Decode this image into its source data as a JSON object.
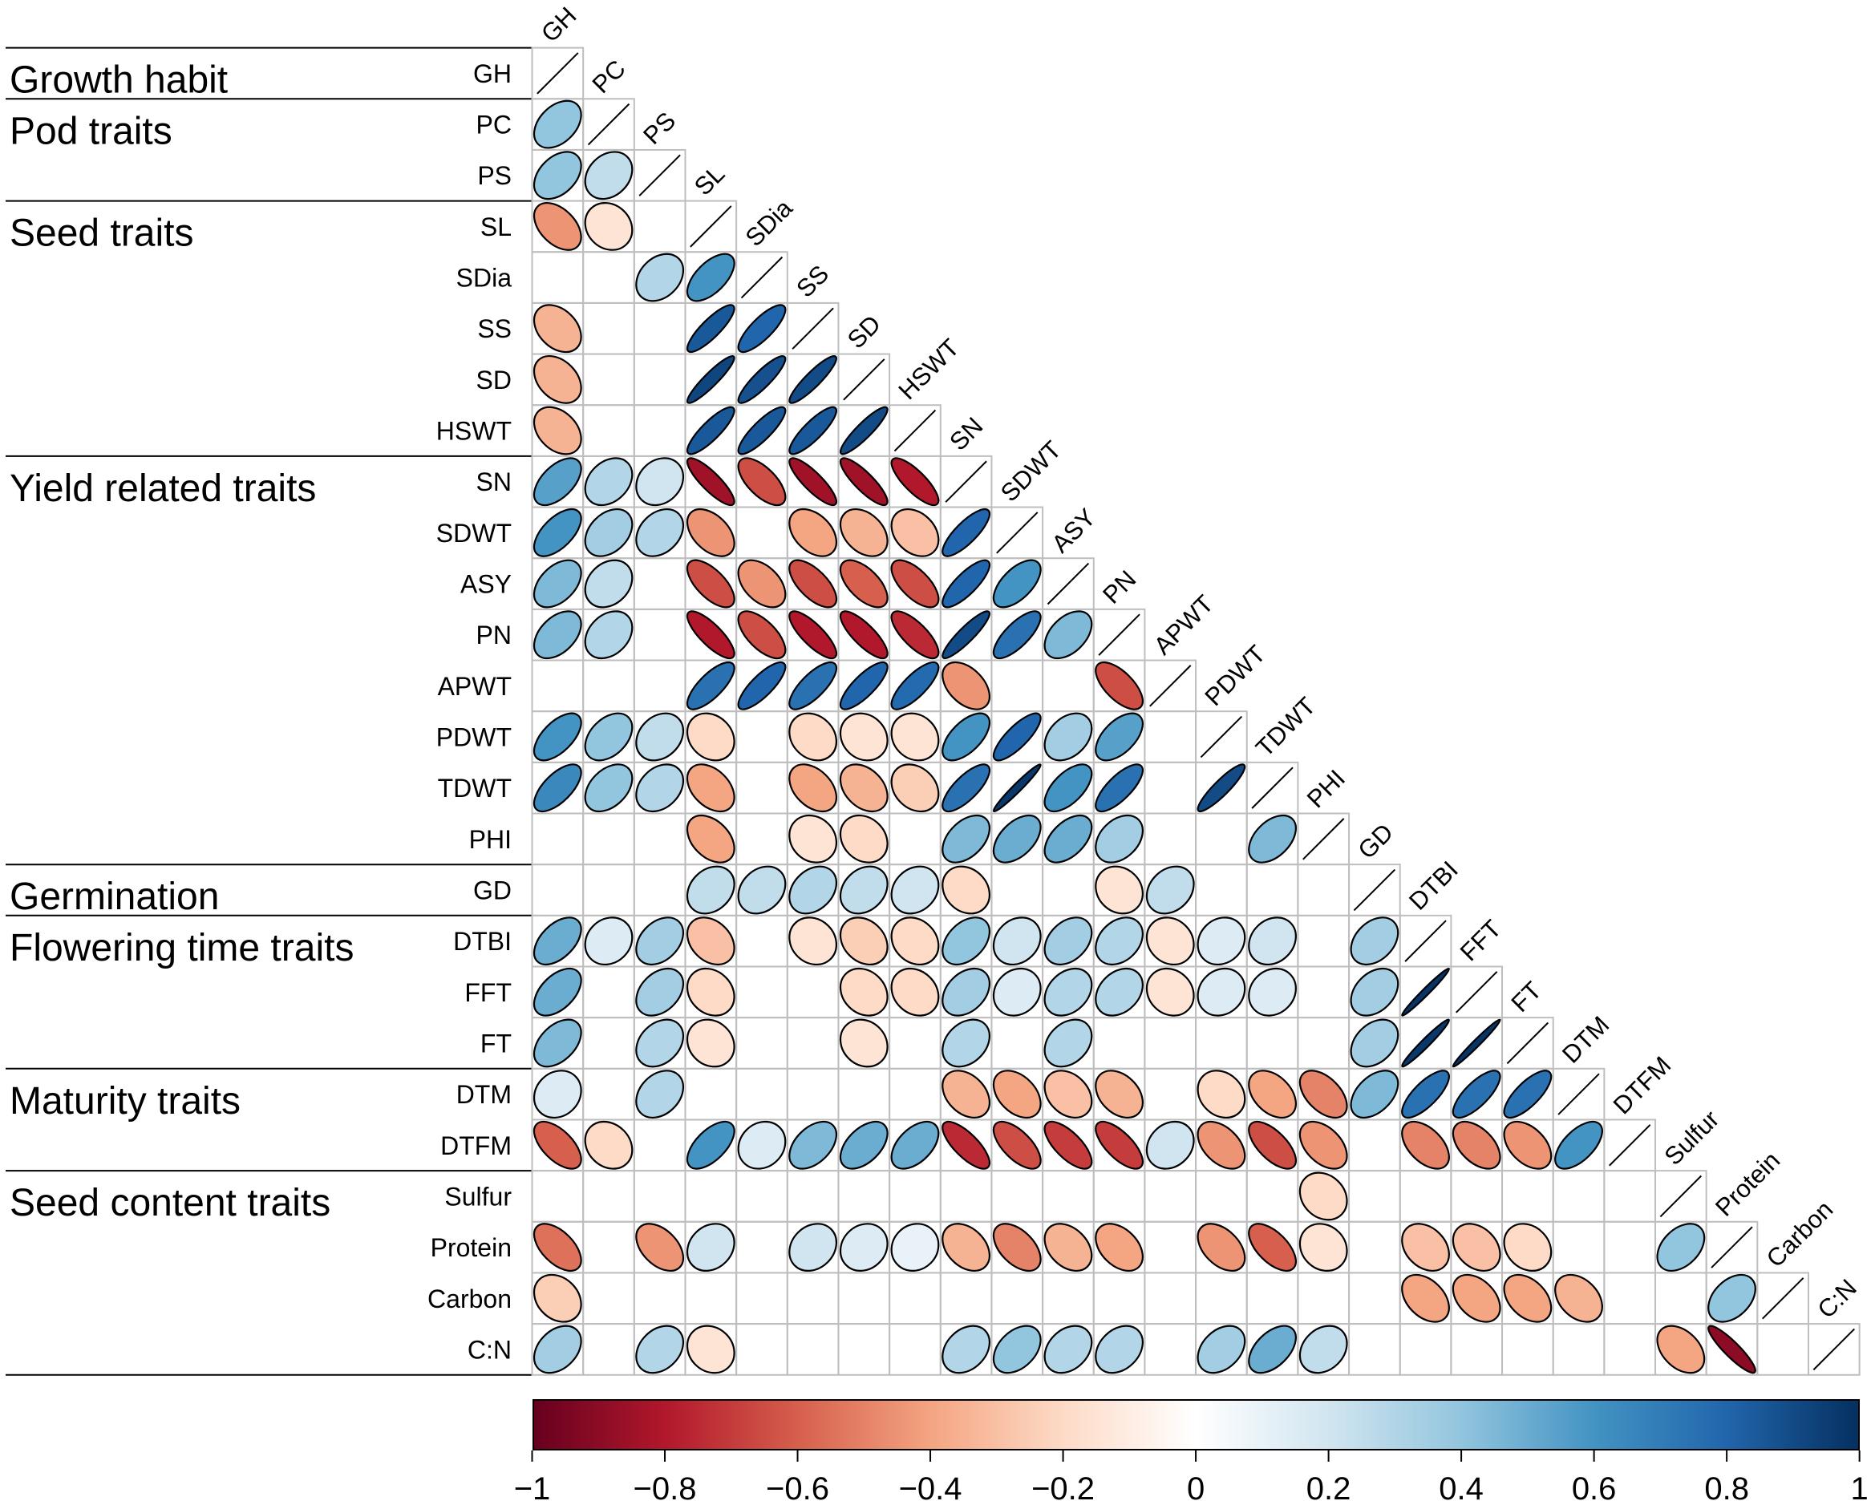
{
  "chart_data": {
    "type": "heatmap",
    "variables": [
      "GH",
      "PC",
      "PS",
      "SL",
      "SDia",
      "SS",
      "SD",
      "HSWT",
      "SN",
      "SDWT",
      "ASY",
      "PN",
      "APWT",
      "PDWT",
      "TDWT",
      "PHI",
      "GD",
      "DTBI",
      "FFT",
      "FT",
      "DTM",
      "DTFM",
      "Sulfur",
      "Protein",
      "Carbon",
      "C:N"
    ],
    "groups": [
      {
        "label": "Growth habit",
        "start": 0,
        "end": 0
      },
      {
        "label": "Pod traits",
        "start": 1,
        "end": 2
      },
      {
        "label": "Seed traits",
        "start": 3,
        "end": 7
      },
      {
        "label": "Yield related traits",
        "start": 8,
        "end": 15
      },
      {
        "label": "Germination",
        "start": 16,
        "end": 16
      },
      {
        "label": "Flowering time traits",
        "start": 17,
        "end": 19
      },
      {
        "label": "Maturity traits",
        "start": 20,
        "end": 21
      },
      {
        "label": "Seed content traits",
        "start": 22,
        "end": 25
      }
    ],
    "rows": [
      [],
      [
        0.4
      ],
      [
        0.4,
        0.25
      ],
      [
        -0.45,
        -0.15,
        null
      ],
      [
        null,
        null,
        0.3,
        0.6
      ],
      [
        -0.35,
        null,
        null,
        0.85,
        0.8
      ],
      [
        -0.35,
        null,
        null,
        0.92,
        0.88,
        0.9
      ],
      [
        -0.35,
        null,
        null,
        0.85,
        0.85,
        0.85,
        0.9
      ],
      [
        0.55,
        0.3,
        0.2,
        -0.85,
        -0.65,
        -0.85,
        -0.85,
        -0.8
      ],
      [
        0.6,
        0.35,
        0.3,
        -0.45,
        null,
        -0.4,
        -0.35,
        -0.3,
        0.8
      ],
      [
        0.45,
        0.25,
        null,
        -0.65,
        -0.45,
        -0.65,
        -0.6,
        -0.65,
        0.8,
        0.6
      ],
      [
        0.45,
        0.3,
        null,
        -0.8,
        -0.65,
        -0.8,
        -0.8,
        -0.75,
        0.9,
        0.75,
        0.45
      ],
      [
        null,
        null,
        null,
        0.75,
        0.8,
        0.75,
        0.8,
        0.78,
        -0.45,
        null,
        null,
        -0.65
      ],
      [
        0.6,
        0.4,
        0.25,
        -0.2,
        null,
        -0.2,
        -0.15,
        -0.15,
        0.6,
        0.8,
        0.35,
        0.55,
        null
      ],
      [
        0.65,
        0.4,
        0.3,
        -0.4,
        null,
        -0.4,
        -0.35,
        -0.25,
        0.75,
        0.97,
        0.6,
        0.75,
        null,
        0.9
      ],
      [
        null,
        null,
        null,
        -0.4,
        null,
        -0.15,
        -0.2,
        null,
        0.45,
        0.5,
        0.5,
        0.35,
        null,
        null,
        0.45
      ],
      [
        null,
        null,
        null,
        0.25,
        0.25,
        0.3,
        0.25,
        0.2,
        -0.2,
        null,
        null,
        -0.15,
        0.25,
        null,
        null,
        null
      ],
      [
        0.5,
        0.15,
        0.35,
        -0.3,
        null,
        -0.15,
        -0.25,
        -0.2,
        0.4,
        0.2,
        0.35,
        0.3,
        -0.15,
        0.15,
        0.2,
        null,
        0.35
      ],
      [
        0.5,
        null,
        0.35,
        -0.2,
        null,
        null,
        -0.2,
        -0.2,
        0.35,
        0.15,
        0.3,
        0.3,
        -0.15,
        0.15,
        0.15,
        null,
        0.35,
        0.98
      ],
      [
        0.45,
        null,
        0.3,
        -0.15,
        null,
        null,
        -0.15,
        null,
        0.3,
        null,
        0.3,
        null,
        null,
        null,
        null,
        null,
        0.35,
        0.97,
        0.98
      ],
      [
        0.15,
        null,
        0.3,
        null,
        null,
        null,
        null,
        null,
        -0.35,
        -0.4,
        -0.3,
        -0.35,
        null,
        -0.2,
        -0.4,
        -0.5,
        0.45,
        0.75,
        0.75,
        0.75
      ],
      [
        -0.6,
        -0.2,
        null,
        0.6,
        0.15,
        0.45,
        0.5,
        0.5,
        -0.75,
        -0.65,
        -0.7,
        -0.7,
        0.2,
        -0.45,
        -0.65,
        -0.45,
        null,
        -0.5,
        -0.5,
        -0.45,
        0.6
      ],
      [
        null,
        null,
        null,
        null,
        null,
        null,
        null,
        null,
        null,
        null,
        null,
        null,
        null,
        null,
        null,
        -0.2,
        null,
        null,
        null,
        null,
        null,
        null
      ],
      [
        -0.55,
        null,
        -0.45,
        0.2,
        null,
        0.2,
        0.15,
        0.1,
        -0.35,
        -0.5,
        -0.35,
        -0.4,
        null,
        -0.45,
        -0.6,
        -0.15,
        null,
        -0.3,
        -0.3,
        -0.2,
        null,
        null,
        0.4
      ],
      [
        -0.25,
        null,
        null,
        null,
        null,
        null,
        null,
        null,
        null,
        null,
        null,
        null,
        null,
        null,
        null,
        null,
        null,
        -0.4,
        -0.4,
        -0.4,
        -0.35,
        null,
        null,
        0.4
      ],
      [
        0.35,
        null,
        0.3,
        -0.15,
        null,
        null,
        null,
        null,
        0.3,
        0.4,
        0.3,
        0.3,
        null,
        0.35,
        0.5,
        0.25,
        null,
        null,
        null,
        null,
        null,
        null,
        -0.4,
        -0.9,
        null
      ]
    ],
    "colorscale": [
      "#67001F",
      "#B2182B",
      "#D6604D",
      "#F4A582",
      "#FDDBC7",
      "#FFFFFF",
      "#D1E5F0",
      "#92C5DE",
      "#4393C3",
      "#2166AC",
      "#053061"
    ],
    "colorbar": {
      "min": -1,
      "max": 1,
      "ticks": [
        {
          "value": -1,
          "label": "−1"
        },
        {
          "value": -0.8,
          "label": "−0.8"
        },
        {
          "value": -0.6,
          "label": "−0.6"
        },
        {
          "value": -0.4,
          "label": "−0.4"
        },
        {
          "value": -0.2,
          "label": "−0.2"
        },
        {
          "value": 0,
          "label": "0"
        },
        {
          "value": 0.2,
          "label": "0.2"
        },
        {
          "value": 0.4,
          "label": "0.4"
        },
        {
          "value": 0.6,
          "label": "0.6"
        },
        {
          "value": 0.8,
          "label": "0.8"
        },
        {
          "value": 1,
          "label": "1"
        }
      ]
    },
    "grid_color": "#BEBEBE",
    "outline_color": "#000000"
  }
}
